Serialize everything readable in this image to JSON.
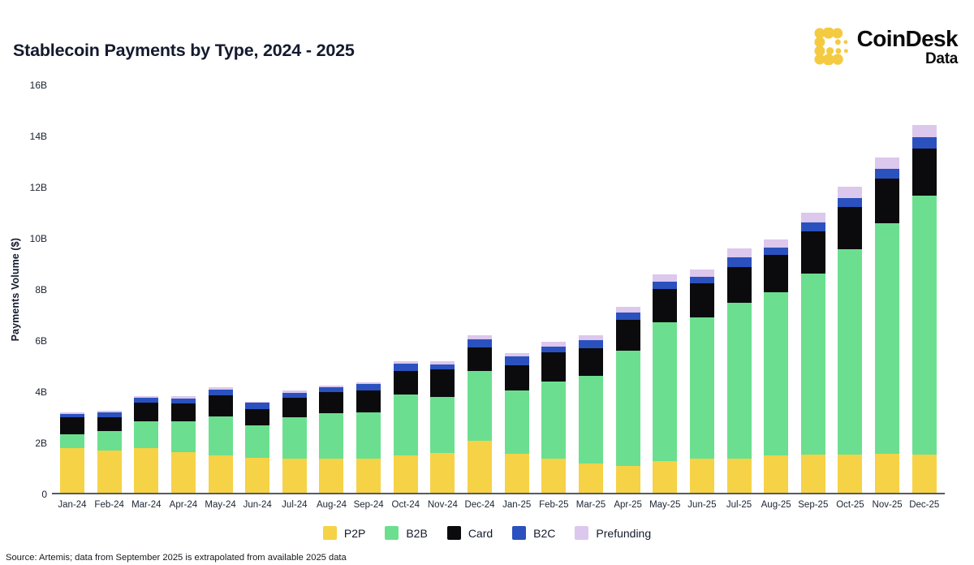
{
  "header": {
    "title": "Stablecoin Payments by Type, 2024 - 2025",
    "logo": {
      "icon": "coindesk-dots-icon",
      "brand": "CoinDesk",
      "sub": "Data",
      "icon_color": "#F4CB40"
    }
  },
  "chart_data": {
    "type": "bar",
    "stacked": true,
    "title": "Stablecoin Payments by Type, 2024 - 2025",
    "xlabel": "",
    "ylabel": "Payments Volume ($)",
    "ylim": [
      0,
      16
    ],
    "yticks": [
      {
        "value": 0,
        "label": "0"
      },
      {
        "value": 2,
        "label": "2B"
      },
      {
        "value": 4,
        "label": "4B"
      },
      {
        "value": 6,
        "label": "6B"
      },
      {
        "value": 8,
        "label": "8B"
      },
      {
        "value": 10,
        "label": "10B"
      },
      {
        "value": 12,
        "label": "12B"
      },
      {
        "value": 14,
        "label": "14B"
      },
      {
        "value": 16,
        "label": "16B"
      }
    ],
    "grid": false,
    "legend_position": "bottom",
    "categories": [
      "Jan-24",
      "Feb-24",
      "Mar-24",
      "Apr-24",
      "May-24",
      "Jun-24",
      "Jul-24",
      "Aug-24",
      "Sep-24",
      "Oct-24",
      "Nov-24",
      "Dec-24",
      "Jan-25",
      "Feb-25",
      "Mar-25",
      "Apr-25",
      "May-25",
      "Jun-25",
      "Jul-25",
      "Aug-25",
      "Sep-25",
      "Oct-25",
      "Nov-25",
      "Dec-25"
    ],
    "series": [
      {
        "name": "P2P",
        "color": "#F6D246",
        "values": [
          1.75,
          1.65,
          1.75,
          1.6,
          1.46,
          1.36,
          1.35,
          1.34,
          1.34,
          1.46,
          1.57,
          2.05,
          1.53,
          1.34,
          1.15,
          1.06,
          1.23,
          1.33,
          1.33,
          1.46,
          1.49,
          1.5,
          1.54,
          1.51
        ]
      },
      {
        "name": "B2B",
        "color": "#6BDF8F",
        "values": [
          0.55,
          0.78,
          1.05,
          1.19,
          1.53,
          1.3,
          1.63,
          1.8,
          1.81,
          2.41,
          2.19,
          2.73,
          2.5,
          3.04,
          3.45,
          4.52,
          5.46,
          5.57,
          6.12,
          6.42,
          7.13,
          8.05,
          9.03,
          10.15
        ]
      },
      {
        "name": "Card",
        "color": "#0B0B0D",
        "values": [
          0.65,
          0.52,
          0.73,
          0.72,
          0.83,
          0.62,
          0.74,
          0.81,
          0.88,
          0.91,
          1.1,
          0.94,
          0.99,
          1.12,
          1.06,
          1.2,
          1.31,
          1.31,
          1.4,
          1.45,
          1.65,
          1.67,
          1.77,
          1.86
        ]
      },
      {
        "name": "B2C",
        "color": "#2A51BE",
        "values": [
          0.15,
          0.2,
          0.19,
          0.2,
          0.24,
          0.25,
          0.19,
          0.18,
          0.23,
          0.29,
          0.19,
          0.32,
          0.33,
          0.25,
          0.32,
          0.3,
          0.3,
          0.27,
          0.38,
          0.29,
          0.35,
          0.36,
          0.39,
          0.43
        ]
      },
      {
        "name": "Prefunding",
        "color": "#DCC7ED",
        "values": [
          0.05,
          0.06,
          0.07,
          0.08,
          0.08,
          0.04,
          0.11,
          0.09,
          0.08,
          0.08,
          0.13,
          0.13,
          0.13,
          0.18,
          0.19,
          0.22,
          0.26,
          0.3,
          0.35,
          0.33,
          0.38,
          0.43,
          0.44,
          0.5
        ]
      }
    ]
  },
  "footer": {
    "source": "Source: Artemis; data from September 2025  is extrapolated from available 2025 data"
  }
}
